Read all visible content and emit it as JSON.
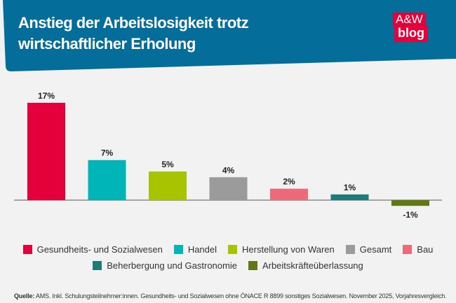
{
  "header": {
    "title": "Anstieg der Arbeitslosigkeit trotz wirtschaftlicher Erholung",
    "logo_line1": "A&W",
    "logo_line2": "blog",
    "banner_color": "#046d9a"
  },
  "chart_data": {
    "type": "bar",
    "categories": [
      "Gesundheits- und Sozialwesen",
      "Handel",
      "Herstellung von Waren",
      "Gesamt",
      "Bau",
      "Beherbergung und Gastronomie",
      "Arbeitskräfteüberlassung"
    ],
    "values": [
      17,
      7,
      5,
      4,
      2,
      1,
      -1
    ],
    "data_labels": [
      "17%",
      "7%",
      "5%",
      "4%",
      "2%",
      "1%",
      "-1%"
    ],
    "colors": [
      "#e4003a",
      "#00b5b8",
      "#a8c300",
      "#9b9b9b",
      "#ec6a7a",
      "#1f7a7a",
      "#5f7a14"
    ],
    "title": "Anstieg der Arbeitslosigkeit trotz wirtschaftlicher Erholung",
    "xlabel": "",
    "ylabel": "",
    "grid": false,
    "legend": "bottom"
  },
  "footer": {
    "source_label": "Quelle:",
    "source_text": " AMS. Inkl. Schulungsteilnehmer:innen. Gesundheits- und Sozialwesen ohne ÖNACE R 8899 sonstiges Sozialwesen. November 2025, Vorjahresvergleich."
  }
}
